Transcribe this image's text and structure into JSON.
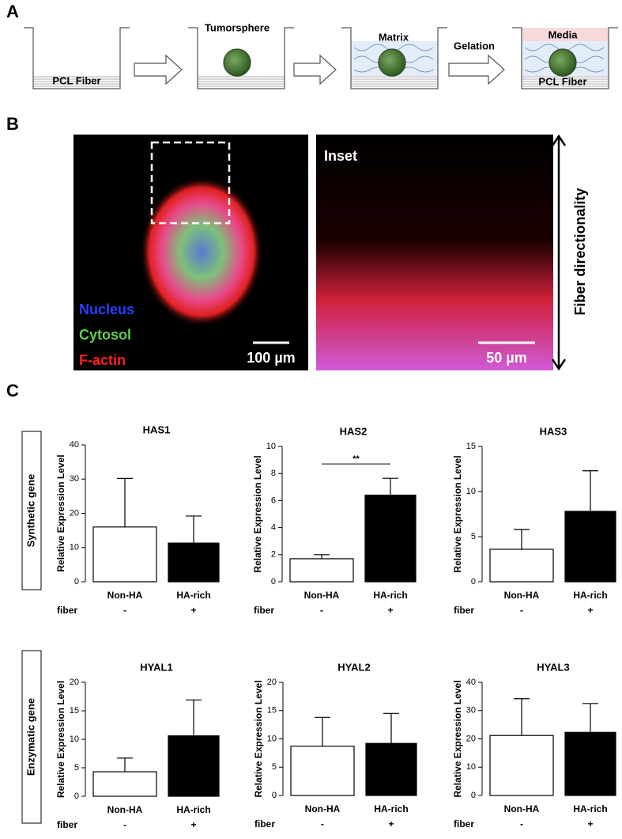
{
  "panel_labels": [
    "A",
    "B",
    "C"
  ],
  "schematic": {
    "labels": [
      "PCL Fiber",
      "Tumorsphere",
      "Matrix",
      "Gelation",
      "Media",
      "PCL Fiber"
    ]
  },
  "microscopy": {
    "legend": [
      "Nucleus",
      "Cytosol",
      "F-actin"
    ],
    "scale_bars": [
      "100 µm",
      "50 µm"
    ],
    "inset_label": "Inset",
    "direction_label": "Fiber directionality"
  },
  "row_labels": [
    "Synthetic gene",
    "Enzymatic gene"
  ],
  "chart_data": [
    {
      "type": "bar",
      "title": "HAS1",
      "y_label": "Relative Expression Level",
      "categories": [
        "Non-HA",
        "HA-rich"
      ],
      "x_sublabel": "fiber",
      "x_subcategories": [
        "-",
        "+"
      ],
      "values": [
        16,
        11.3
      ],
      "errors": [
        14.2,
        7.9
      ],
      "colors": [
        "#ffffff",
        "#000000"
      ],
      "ylim": [
        0,
        40
      ],
      "yticks": [
        0,
        10,
        20,
        30,
        40
      ]
    },
    {
      "type": "bar",
      "title": "HAS2",
      "y_label": "Relative Expression Level",
      "categories": [
        "Non-HA",
        "HA-rich"
      ],
      "x_sublabel": "fiber",
      "x_subcategories": [
        "-",
        "+"
      ],
      "values": [
        1.7,
        6.4
      ],
      "errors": [
        0.3,
        1.25
      ],
      "colors": [
        "#ffffff",
        "#000000"
      ],
      "ylim": [
        0,
        10
      ],
      "yticks": [
        0,
        2,
        4,
        6,
        8,
        10
      ],
      "significance": "**"
    },
    {
      "type": "bar",
      "title": "HAS3",
      "y_label": "Relative Expression Level",
      "categories": [
        "Non-HA",
        "HA-rich"
      ],
      "x_sublabel": "fiber",
      "x_subcategories": [
        "-",
        "+"
      ],
      "values": [
        3.6,
        7.8
      ],
      "errors": [
        2.2,
        4.5
      ],
      "colors": [
        "#ffffff",
        "#000000"
      ],
      "ylim": [
        0,
        15
      ],
      "yticks": [
        0,
        5,
        10,
        15
      ]
    },
    {
      "type": "bar",
      "title": "HYAL1",
      "y_label": "Relative Expression Level",
      "categories": [
        "Non-HA",
        "HA-rich"
      ],
      "x_sublabel": "fiber",
      "x_subcategories": [
        "-",
        "+"
      ],
      "values": [
        4.3,
        10.6
      ],
      "errors": [
        2.4,
        6.3
      ],
      "colors": [
        "#ffffff",
        "#000000"
      ],
      "ylim": [
        0,
        20
      ],
      "yticks": [
        0,
        5,
        10,
        15,
        20
      ]
    },
    {
      "type": "bar",
      "title": "HYAL2",
      "y_label": "Relative Expression Level",
      "categories": [
        "Non-HA",
        "HA-rich"
      ],
      "x_sublabel": "fiber",
      "x_subcategories": [
        "-",
        "+"
      ],
      "values": [
        8.7,
        9.2
      ],
      "errors": [
        5.1,
        5.3
      ],
      "colors": [
        "#ffffff",
        "#000000"
      ],
      "ylim": [
        0,
        20
      ],
      "yticks": [
        0,
        5,
        10,
        15,
        20
      ]
    },
    {
      "type": "bar",
      "title": "HYAL3",
      "y_label": "Relative Expression Level",
      "categories": [
        "Non-HA",
        "HA-rich"
      ],
      "x_sublabel": "fiber",
      "x_subcategories": [
        "-",
        "+"
      ],
      "values": [
        21.2,
        22.3
      ],
      "errors": [
        13,
        10.2
      ],
      "colors": [
        "#ffffff",
        "#000000"
      ],
      "ylim": [
        0,
        40
      ],
      "yticks": [
        0,
        10,
        20,
        30,
        40
      ]
    }
  ]
}
